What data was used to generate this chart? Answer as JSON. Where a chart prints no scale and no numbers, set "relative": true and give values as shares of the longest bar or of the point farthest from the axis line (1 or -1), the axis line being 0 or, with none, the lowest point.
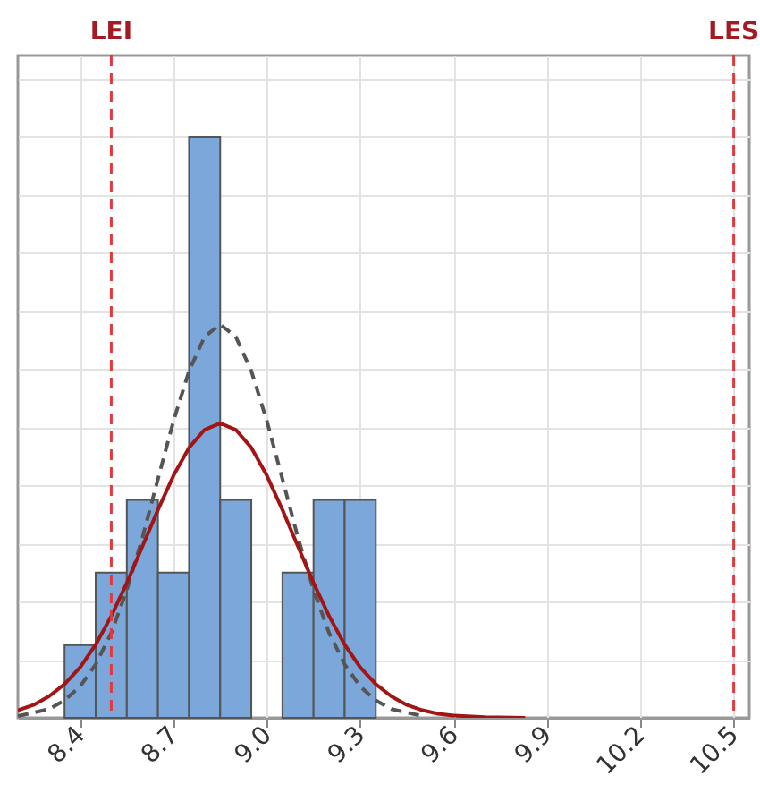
{
  "chart_data": {
    "type": "histogram",
    "relative": true,
    "color": "#7ba7da",
    "bins": [
      8.35,
      8.45,
      8.55,
      8.65,
      8.75,
      8.85,
      8.95,
      9.05,
      9.15,
      9.25,
      9.35
    ],
    "values": [
      0.125,
      0.25,
      0.375,
      0.25,
      1,
      0.375,
      0,
      0.25,
      0.375,
      0.375
    ],
    "series": [
      {
        "type": "line",
        "color": "#555555",
        "line_style": "dashed",
        "x": [
          8.2,
          8.3,
          8.35,
          8.4,
          8.45,
          8.5,
          8.55,
          8.6,
          8.65,
          8.7,
          8.75,
          8.8,
          8.85,
          8.9,
          8.95,
          9.0,
          9.05,
          9.1,
          9.15,
          9.2,
          9.25,
          9.3,
          9.35,
          9.4,
          9.5
        ],
        "values": [
          0.003,
          0.015,
          0.03,
          0.054,
          0.092,
          0.146,
          0.22,
          0.31,
          0.411,
          0.511,
          0.597,
          0.656,
          0.677,
          0.656,
          0.597,
          0.511,
          0.411,
          0.31,
          0.22,
          0.146,
          0.092,
          0.054,
          0.03,
          0.015,
          0.003
        ]
      },
      {
        "type": "line",
        "color": "#a31515",
        "line_style": "solid",
        "x": [
          8.2,
          8.25,
          8.3,
          8.35,
          8.4,
          8.45,
          8.5,
          8.55,
          8.6,
          8.65,
          8.7,
          8.75,
          8.8,
          8.85,
          8.9,
          8.95,
          9.0,
          9.05,
          9.1,
          9.15,
          9.2,
          9.25,
          9.3,
          9.35,
          9.4,
          9.45,
          9.5,
          9.55,
          9.6,
          9.7,
          9.83
        ],
        "values": [
          0.013,
          0.022,
          0.037,
          0.058,
          0.087,
          0.126,
          0.175,
          0.232,
          0.295,
          0.358,
          0.417,
          0.465,
          0.496,
          0.507,
          0.496,
          0.465,
          0.417,
          0.358,
          0.295,
          0.232,
          0.175,
          0.126,
          0.087,
          0.058,
          0.037,
          0.022,
          0.013,
          0.007,
          0.004,
          0.001,
          0
        ]
      }
    ],
    "xlim": [
      8.2,
      10.55
    ],
    "xticks": [
      8.4,
      8.7,
      {
        "value": 9,
        "label": "9.0"
      },
      9.3,
      9.6,
      9.9,
      10.2,
      10.5
    ],
    "ref_lines": [
      {
        "axis": "x",
        "value": 8.5,
        "label": "LEI",
        "color": "#e0393e",
        "line_style": "dashed"
      },
      {
        "axis": "x",
        "value": 10.5,
        "label": "LES",
        "color": "#e0393e",
        "line_style": "dashed"
      }
    ],
    "grid": true
  }
}
